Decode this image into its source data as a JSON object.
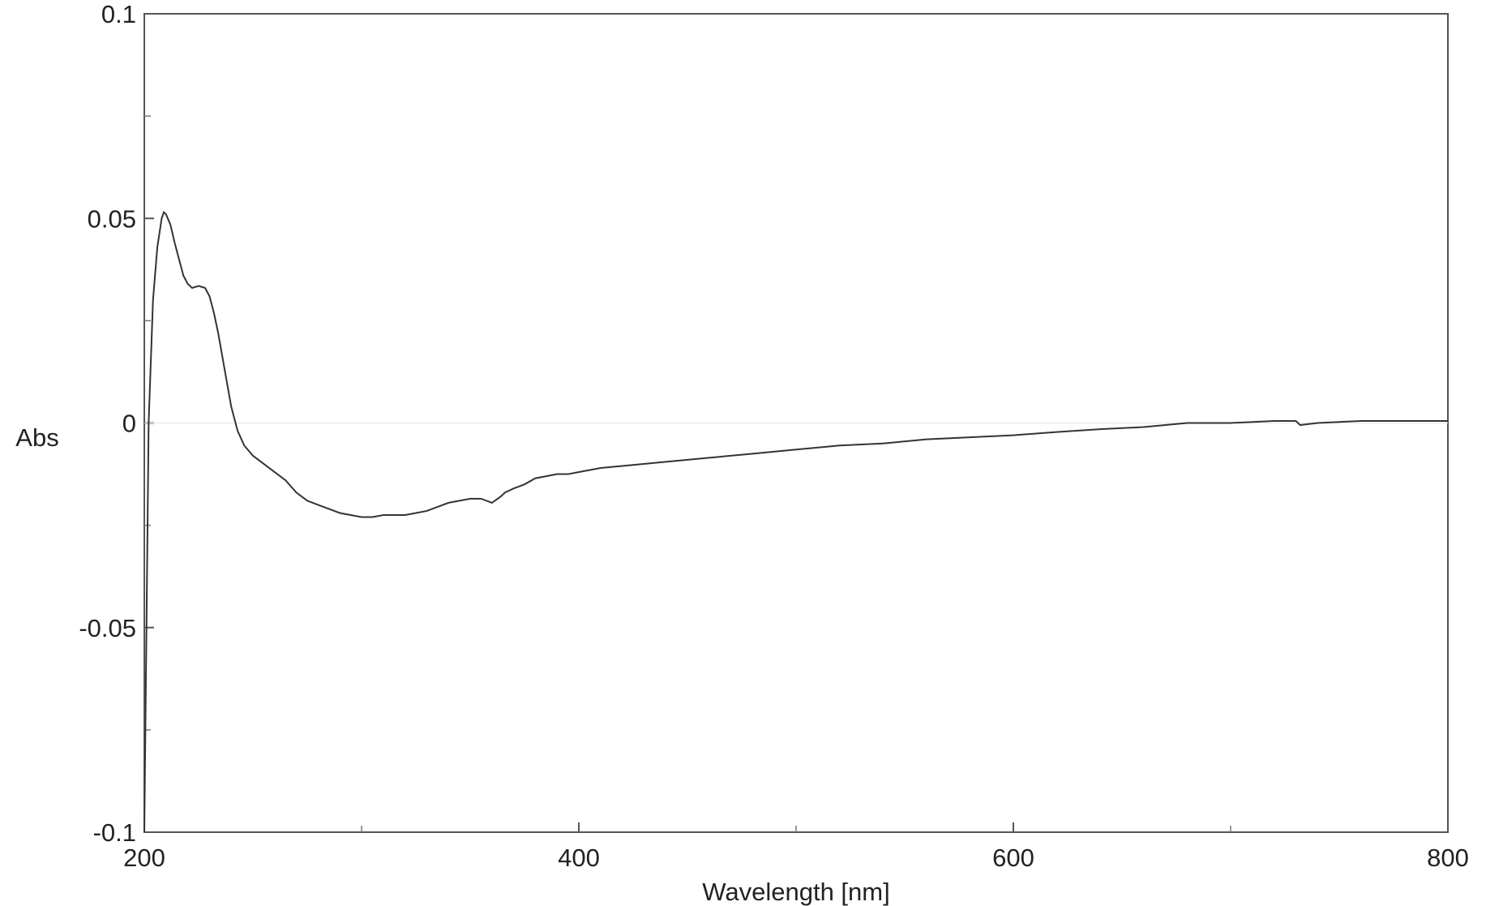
{
  "chart_data": {
    "type": "line",
    "title": "",
    "xlabel": "Wavelength [nm]",
    "ylabel": "Abs",
    "xlim": [
      200,
      800
    ],
    "ylim": [
      -0.1,
      0.1
    ],
    "x_ticks": [
      200,
      400,
      600,
      800
    ],
    "x_minor_ticks": [
      300,
      500,
      700
    ],
    "x_tick_labels": [
      "200",
      "400",
      "600",
      "800"
    ],
    "y_ticks": [
      0.1,
      0.05,
      0,
      -0.05,
      -0.1
    ],
    "y_minor_ticks": [
      0.075,
      0.025,
      -0.025,
      -0.075
    ],
    "y_tick_labels": [
      "0.1",
      "0.05",
      "0",
      "-0.05",
      "-0.1"
    ],
    "grid": false,
    "legend": "none",
    "line_color": "#333333",
    "frame_color": "#555555",
    "series": [
      {
        "x": [
          200,
          201,
          202,
          204,
          206,
          208,
          209,
          210,
          212,
          214,
          216,
          218,
          220,
          222,
          225,
          228,
          230,
          232,
          234,
          236,
          238,
          240,
          243,
          246,
          250,
          255,
          260,
          265,
          270,
          275,
          280,
          285,
          290,
          295,
          300,
          305,
          310,
          315,
          320,
          325,
          330,
          335,
          340,
          345,
          350,
          355,
          360,
          364,
          366,
          368,
          370,
          375,
          380,
          385,
          390,
          395,
          400,
          410,
          420,
          440,
          460,
          480,
          500,
          520,
          540,
          560,
          580,
          600,
          620,
          640,
          660,
          680,
          700,
          720,
          730,
          732,
          740,
          760,
          780,
          800
        ],
        "y": [
          -0.1,
          -0.05,
          0.0,
          0.03,
          0.043,
          0.05,
          0.0515,
          0.051,
          0.0485,
          0.044,
          0.04,
          0.036,
          0.034,
          0.033,
          0.0335,
          0.033,
          0.031,
          0.027,
          0.022,
          0.016,
          0.01,
          0.004,
          -0.002,
          -0.0055,
          -0.008,
          -0.01,
          -0.012,
          -0.014,
          -0.017,
          -0.019,
          -0.02,
          -0.021,
          -0.022,
          -0.0225,
          -0.023,
          -0.023,
          -0.0225,
          -0.0225,
          -0.0225,
          -0.022,
          -0.0215,
          -0.0205,
          -0.0195,
          -0.019,
          -0.0185,
          -0.0185,
          -0.0195,
          -0.018,
          -0.017,
          -0.0165,
          -0.016,
          -0.015,
          -0.0135,
          -0.013,
          -0.0125,
          -0.0125,
          -0.012,
          -0.011,
          -0.0105,
          -0.0095,
          -0.0085,
          -0.0075,
          -0.0065,
          -0.0055,
          -0.005,
          -0.004,
          -0.0035,
          -0.003,
          -0.0022,
          -0.0015,
          -0.001,
          0.0,
          0.0,
          0.0005,
          0.0005,
          -0.0005,
          0.0,
          0.0005,
          0.0005,
          0.0005
        ]
      }
    ]
  }
}
